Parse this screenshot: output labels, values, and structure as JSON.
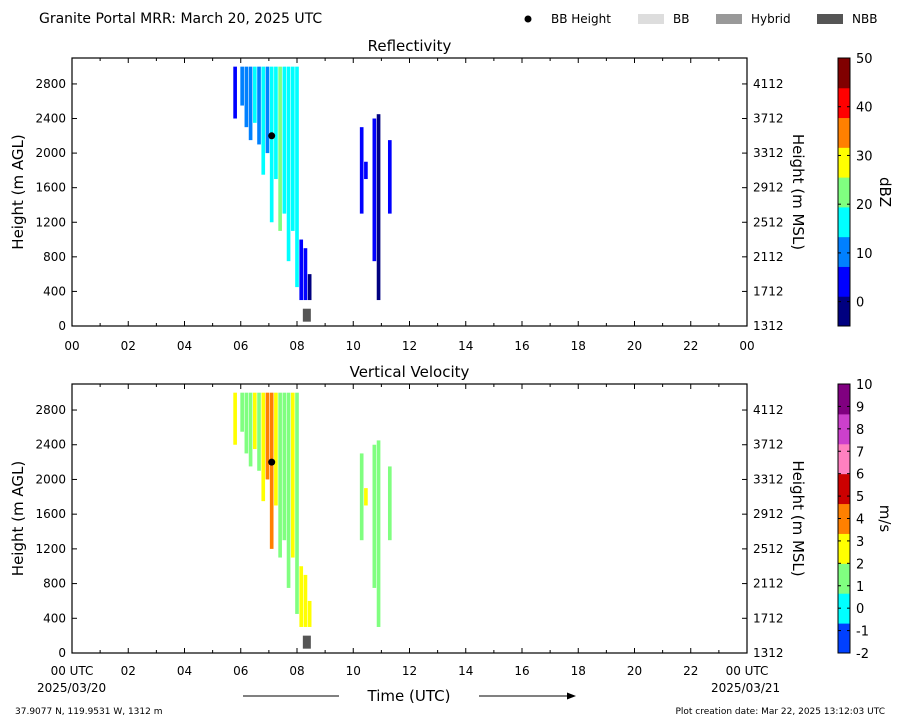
{
  "header": {
    "title": "Granite Portal MRR:  March 20, 2025 UTC",
    "legend": [
      {
        "label": "BB Height",
        "symbol": "dot",
        "color": "#000000"
      },
      {
        "label": "BB",
        "symbol": "box",
        "color": "#dddddd"
      },
      {
        "label": "Hybrid",
        "symbol": "box",
        "color": "#999999"
      },
      {
        "label": "NBB",
        "symbol": "box",
        "color": "#555555"
      }
    ]
  },
  "footer": {
    "location": "37.9077 N, 119.9531 W, 1312 m",
    "creation": "Plot creation date: Mar 22, 2025 13:12:03 UTC",
    "xlabel": "Time (UTC)",
    "start_date": "2025/03/20",
    "end_date": "2025/03/21"
  },
  "chart_data": [
    {
      "type": "heatmap",
      "title": "Reflectivity",
      "ylabel": "Height (m AGL)",
      "y2label": "Height (m MSL)",
      "xlim": [
        0,
        24
      ],
      "ylim": [
        0,
        3100
      ],
      "xticks": [
        "00",
        "02",
        "04",
        "06",
        "08",
        "10",
        "12",
        "14",
        "16",
        "18",
        "20",
        "22",
        "00"
      ],
      "yticks": [
        0,
        400,
        800,
        1200,
        1600,
        2000,
        2400,
        2800
      ],
      "y2ticks": [
        1312,
        1712,
        2112,
        2512,
        2912,
        3312,
        3712,
        4112
      ],
      "colorbar": {
        "label": "dBZ",
        "range": [
          -5,
          50
        ],
        "ticks": [
          0,
          10,
          20,
          30,
          40,
          50
        ],
        "colors": [
          "#000080",
          "#0000ff",
          "#0080ff",
          "#00ffff",
          "#80ff80",
          "#ffff00",
          "#ff8000",
          "#ff0000",
          "#800000"
        ]
      },
      "bb_height": [
        {
          "time": 7.1,
          "height": 2200
        }
      ],
      "precip_type": [
        {
          "time": 8.35,
          "type": "NBB",
          "height": [
            50,
            200
          ]
        }
      ],
      "echo_columns": [
        {
          "time": 5.8,
          "bottom": 2400,
          "top": 3000,
          "value": 6
        },
        {
          "time": 6.05,
          "bottom": 2550,
          "top": 3000,
          "value": 10
        },
        {
          "time": 6.2,
          "bottom": 2300,
          "top": 3000,
          "value": 9
        },
        {
          "time": 6.35,
          "bottom": 2150,
          "top": 3000,
          "value": 11
        },
        {
          "time": 6.5,
          "bottom": 2350,
          "top": 3000,
          "value": 14
        },
        {
          "time": 6.65,
          "bottom": 2100,
          "top": 3000,
          "value": 12
        },
        {
          "time": 6.8,
          "bottom": 1750,
          "top": 3000,
          "value": 15
        },
        {
          "time": 6.95,
          "bottom": 2000,
          "top": 3000,
          "value": 10
        },
        {
          "time": 7.1,
          "bottom": 1200,
          "top": 3000,
          "value": 18
        },
        {
          "time": 7.25,
          "bottom": 1700,
          "top": 3000,
          "value": 16
        },
        {
          "time": 7.4,
          "bottom": 1100,
          "top": 3000,
          "value": 20
        },
        {
          "time": 7.55,
          "bottom": 1300,
          "top": 3000,
          "value": 17
        },
        {
          "time": 7.7,
          "bottom": 750,
          "top": 3000,
          "value": 19
        },
        {
          "time": 7.85,
          "bottom": 1100,
          "top": 3000,
          "value": 16
        },
        {
          "time": 8.0,
          "bottom": 450,
          "top": 3000,
          "value": 15
        },
        {
          "time": 8.15,
          "bottom": 300,
          "top": 1000,
          "value": 6
        },
        {
          "time": 8.3,
          "bottom": 300,
          "top": 900,
          "value": 3
        },
        {
          "time": 8.45,
          "bottom": 300,
          "top": 600,
          "value": 1
        },
        {
          "time": 10.3,
          "bottom": 1300,
          "top": 2300,
          "value": 4
        },
        {
          "time": 10.45,
          "bottom": 1700,
          "top": 1900,
          "value": 6
        },
        {
          "time": 10.75,
          "bottom": 750,
          "top": 2400,
          "value": 2
        },
        {
          "time": 10.9,
          "bottom": 300,
          "top": 2450,
          "value": 1
        },
        {
          "time": 11.3,
          "bottom": 1300,
          "top": 2150,
          "value": 5
        }
      ]
    },
    {
      "type": "heatmap",
      "title": "Vertical Velocity",
      "ylabel": "Height (m AGL)",
      "y2label": "Height (m MSL)",
      "xlim": [
        0,
        24
      ],
      "ylim": [
        0,
        3100
      ],
      "xticks": [
        "00 UTC",
        "02",
        "04",
        "06",
        "08",
        "10",
        "12",
        "14",
        "16",
        "18",
        "20",
        "22",
        "00 UTC"
      ],
      "yticks": [
        0,
        400,
        800,
        1200,
        1600,
        2000,
        2400,
        2800
      ],
      "y2ticks": [
        1312,
        1712,
        2112,
        2512,
        2912,
        3312,
        3712,
        4112
      ],
      "colorbar": {
        "label": "m/s",
        "range": [
          -2,
          10
        ],
        "ticks": [
          -2,
          -1,
          0,
          1,
          2,
          3,
          4,
          5,
          6,
          7,
          8,
          9,
          10
        ],
        "colors": [
          "#0040ff",
          "#00ffff",
          "#80ff80",
          "#ffff00",
          "#ff8000",
          "#cc0000",
          "#ff80c0",
          "#cc40cc",
          "#800080"
        ]
      },
      "bb_height": [
        {
          "time": 7.1,
          "height": 2200
        }
      ],
      "precip_type": [
        {
          "time": 8.35,
          "type": "NBB",
          "height": [
            50,
            200
          ]
        }
      ],
      "echo_columns": [
        {
          "time": 5.8,
          "bottom": 2400,
          "top": 3000,
          "value": 2.2
        },
        {
          "time": 6.05,
          "bottom": 2550,
          "top": 3000,
          "value": 1.5
        },
        {
          "time": 6.2,
          "bottom": 2300,
          "top": 3000,
          "value": 1.8
        },
        {
          "time": 6.35,
          "bottom": 2150,
          "top": 3000,
          "value": 1.2
        },
        {
          "time": 6.5,
          "bottom": 2350,
          "top": 3000,
          "value": 2.0
        },
        {
          "time": 6.65,
          "bottom": 2100,
          "top": 3000,
          "value": 1.4
        },
        {
          "time": 6.8,
          "bottom": 1750,
          "top": 3000,
          "value": 2.3
        },
        {
          "time": 6.95,
          "bottom": 2000,
          "top": 3000,
          "value": 3.5
        },
        {
          "time": 7.1,
          "bottom": 1200,
          "top": 3000,
          "value": 4.5
        },
        {
          "time": 7.25,
          "bottom": 1700,
          "top": 3000,
          "value": 2.5
        },
        {
          "time": 7.4,
          "bottom": 1100,
          "top": 3000,
          "value": 1.6
        },
        {
          "time": 7.55,
          "bottom": 1300,
          "top": 3000,
          "value": 1.9
        },
        {
          "time": 7.7,
          "bottom": 750,
          "top": 3000,
          "value": 1.3
        },
        {
          "time": 7.85,
          "bottom": 1100,
          "top": 3000,
          "value": 2.1
        },
        {
          "time": 8.0,
          "bottom": 450,
          "top": 3000,
          "value": 1.5
        },
        {
          "time": 8.15,
          "bottom": 300,
          "top": 1000,
          "value": 2.4
        },
        {
          "time": 8.3,
          "bottom": 300,
          "top": 900,
          "value": 2.6
        },
        {
          "time": 8.45,
          "bottom": 300,
          "top": 600,
          "value": 2.2
        },
        {
          "time": 10.3,
          "bottom": 1300,
          "top": 2300,
          "value": 1.6
        },
        {
          "time": 10.45,
          "bottom": 1700,
          "top": 1900,
          "value": 2.0
        },
        {
          "time": 10.75,
          "bottom": 750,
          "top": 2400,
          "value": 0.8
        },
        {
          "time": 10.9,
          "bottom": 300,
          "top": 2450,
          "value": 1.2
        },
        {
          "time": 11.3,
          "bottom": 1300,
          "top": 2150,
          "value": 1.8
        }
      ]
    }
  ]
}
